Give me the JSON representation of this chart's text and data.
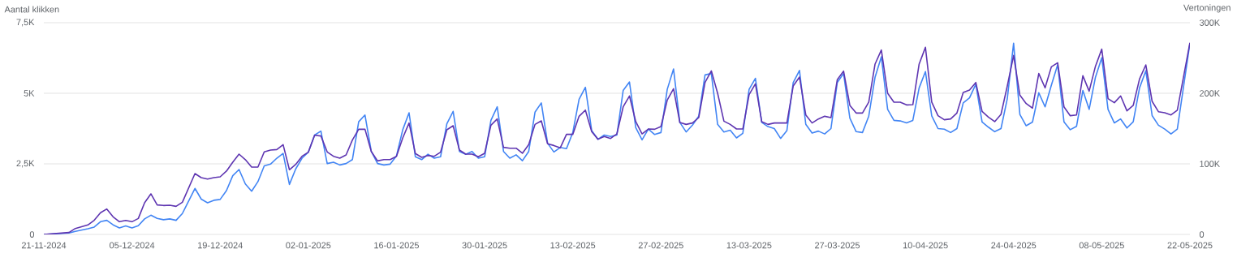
{
  "chart_data": {
    "type": "line",
    "ylabel": "Aantal klikken",
    "y2label": "Vertoningen",
    "grid": "y",
    "marker": "none",
    "xlim": [
      "2024-11-21",
      "2025-05-22"
    ],
    "xticks": [
      {
        "value": "2024-11-21",
        "label": "21-11-2024"
      },
      {
        "value": "2024-12-05",
        "label": "05-12-2024"
      },
      {
        "value": "2024-12-19",
        "label": "19-12-2024"
      },
      {
        "value": "2025-01-02",
        "label": "02-01-2025"
      },
      {
        "value": "2025-01-16",
        "label": "16-01-2025"
      },
      {
        "value": "2025-01-30",
        "label": "30-01-2025"
      },
      {
        "value": "2025-02-13",
        "label": "13-02-2025"
      },
      {
        "value": "2025-02-27",
        "label": "27-02-2025"
      },
      {
        "value": "2025-03-13",
        "label": "13-03-2025"
      },
      {
        "value": "2025-03-27",
        "label": "27-03-2025"
      },
      {
        "value": "2025-04-10",
        "label": "10-04-2025"
      },
      {
        "value": "2025-04-24",
        "label": "24-04-2025"
      },
      {
        "value": "2025-05-08",
        "label": "08-05-2025"
      },
      {
        "value": "2025-05-22",
        "label": "22-05-2025"
      }
    ],
    "ylim": [
      0,
      7500
    ],
    "yticks": [
      0,
      {
        "value": 2500,
        "label": "2,5K"
      },
      {
        "value": 5000,
        "label": "5K"
      },
      {
        "value": 7500,
        "label": "7,5K"
      }
    ],
    "y2lim": [
      0,
      300000
    ],
    "y2ticks": [
      0,
      {
        "value": 100000,
        "label": "100K"
      },
      {
        "value": 200000,
        "label": "200K"
      },
      {
        "value": 300000,
        "label": "300K"
      }
    ],
    "x": [
      "2024-11-21",
      "2024-11-25",
      "2024-11-26",
      "2024-11-28",
      "2024-11-29",
      "2024-11-30",
      "2024-12-01",
      "2024-12-02",
      "2024-12-03",
      "2024-12-04",
      "2024-12-05",
      "2024-12-06",
      "2024-12-07",
      "2024-12-08",
      "2024-12-09",
      "2024-12-10",
      "2024-12-11",
      "2024-12-12",
      "2024-12-13",
      "2024-12-15",
      "2024-12-16",
      "2024-12-17",
      "2024-12-18",
      "2024-12-19",
      "2024-12-20",
      "2024-12-21",
      "2024-12-22",
      "2024-12-23",
      "2024-12-24",
      "2024-12-25",
      "2024-12-26",
      "2024-12-27",
      "2024-12-28",
      "2024-12-29",
      "2024-12-30",
      "2024-12-31",
      "2025-01-01",
      "2025-01-02",
      "2025-01-03",
      "2025-01-04",
      "2025-01-05",
      "2025-01-06",
      "2025-01-07",
      "2025-01-08",
      "2025-01-09",
      "2025-01-10",
      "2025-01-11",
      "2025-01-12",
      "2025-01-13",
      "2025-01-14",
      "2025-01-15",
      "2025-01-16",
      "2025-01-17",
      "2025-01-18",
      "2025-01-19",
      "2025-01-20",
      "2025-01-21",
      "2025-01-22",
      "2025-01-23",
      "2025-01-24",
      "2025-01-25",
      "2025-01-26",
      "2025-01-27",
      "2025-01-28",
      "2025-01-29",
      "2025-01-30",
      "2025-01-31",
      "2025-02-01",
      "2025-02-02",
      "2025-02-03",
      "2025-02-04",
      "2025-02-05",
      "2025-02-06",
      "2025-02-07",
      "2025-02-08",
      "2025-02-09",
      "2025-02-10",
      "2025-02-11",
      "2025-02-12",
      "2025-02-13",
      "2025-02-14",
      "2025-02-15",
      "2025-02-16",
      "2025-02-17",
      "2025-02-18",
      "2025-02-19",
      "2025-02-20",
      "2025-02-21",
      "2025-02-22",
      "2025-02-23",
      "2025-02-24",
      "2025-02-25",
      "2025-02-26",
      "2025-02-27",
      "2025-02-28",
      "2025-03-01",
      "2025-03-02",
      "2025-03-03",
      "2025-03-04",
      "2025-03-05",
      "2025-03-06",
      "2025-03-07",
      "2025-03-08",
      "2025-03-09",
      "2025-03-10",
      "2025-03-11",
      "2025-03-12",
      "2025-03-13",
      "2025-03-14",
      "2025-03-15",
      "2025-03-16",
      "2025-03-17",
      "2025-03-18",
      "2025-03-19",
      "2025-03-20",
      "2025-03-21",
      "2025-03-22",
      "2025-03-23",
      "2025-03-24",
      "2025-03-25",
      "2025-03-26",
      "2025-03-27",
      "2025-03-28",
      "2025-03-29",
      "2025-03-30",
      "2025-03-31",
      "2025-04-01",
      "2025-04-02",
      "2025-04-03",
      "2025-04-04",
      "2025-04-05",
      "2025-04-06",
      "2025-04-07",
      "2025-04-08",
      "2025-04-09",
      "2025-04-10",
      "2025-04-11",
      "2025-04-12",
      "2025-04-13",
      "2025-04-14",
      "2025-04-15",
      "2025-04-16",
      "2025-04-17",
      "2025-04-18",
      "2025-04-19",
      "2025-04-20",
      "2025-04-21",
      "2025-04-22",
      "2025-04-23",
      "2025-04-24",
      "2025-04-25",
      "2025-04-26",
      "2025-04-27",
      "2025-04-28",
      "2025-04-29",
      "2025-04-30",
      "2025-05-01",
      "2025-05-02",
      "2025-05-03",
      "2025-05-04",
      "2025-05-05",
      "2025-05-06",
      "2025-05-07",
      "2025-05-08",
      "2025-05-09",
      "2025-05-10",
      "2025-05-11",
      "2025-05-12",
      "2025-05-13",
      "2025-05-14",
      "2025-05-15",
      "2025-05-16",
      "2025-05-17",
      "2025-05-18",
      "2025-05-19",
      "2025-05-20",
      "2025-05-22"
    ],
    "series": [
      {
        "color": "#5e35b1",
        "axis": "y2",
        "values": [
          0,
          2700,
          8400,
          13400,
          20000,
          30700,
          36000,
          24900,
          18000,
          19900,
          18000,
          22600,
          44800,
          57500,
          41800,
          41000,
          41400,
          39800,
          45600,
          86200,
          80500,
          78500,
          80500,
          81600,
          89700,
          102300,
          113800,
          106000,
          95400,
          95400,
          116900,
          119500,
          120300,
          127200,
          91600,
          99200,
          110700,
          116500,
          140600,
          139500,
          116900,
          110700,
          108000,
          112600,
          133700,
          149000,
          149000,
          117600,
          104200,
          106100,
          106100,
          110700,
          136800,
          157900,
          114600,
          109200,
          111900,
          110700,
          116500,
          148300,
          154000,
          119500,
          113800,
          113800,
          110000,
          115000,
          154800,
          163600,
          123400,
          122200,
          122200,
          115000,
          127200,
          155900,
          160900,
          128400,
          126000,
          122600,
          141800,
          141800,
          167400,
          176200,
          145600,
          134900,
          138700,
          136000,
          142500,
          180800,
          196200,
          159800,
          142500,
          149400,
          149000,
          152900,
          190400,
          206500,
          158600,
          155900,
          157900,
          165500,
          215300,
          231800,
          200000,
          160500,
          155900,
          149400,
          149400,
          198100,
          213400,
          159800,
          155900,
          157900,
          157900,
          157900,
          210300,
          223000,
          169300,
          157900,
          163600,
          167400,
          165500,
          219200,
          231400,
          182800,
          172000,
          172000,
          187400,
          241400,
          261300,
          200000,
          187400,
          187400,
          183500,
          183900,
          241400,
          265100,
          187400,
          168200,
          162500,
          163600,
          172000,
          201100,
          204600,
          215300,
          174300,
          166300,
          159800,
          170100,
          210300,
          253600,
          197300,
          185400,
          178900,
          228000,
          207700,
          237500,
          243300,
          180800,
          168200,
          169300,
          224900,
          203000,
          238300,
          262500,
          192300,
          186600,
          196200,
          175100,
          182800,
          220300,
          240200,
          188500,
          173900,
          172400,
          169300,
          175900,
          271600
        ]
      },
      {
        "color": "#4285f4",
        "axis": "y",
        "values": [
          0,
          50,
          110,
          200,
          260,
          450,
          500,
          340,
          230,
          300,
          230,
          310,
          550,
          680,
          570,
          520,
          550,
          500,
          740,
          1630,
          1250,
          1120,
          1210,
          1240,
          1550,
          2080,
          2300,
          1790,
          1530,
          1870,
          2430,
          2490,
          2700,
          2870,
          1770,
          2320,
          2700,
          2910,
          3520,
          3660,
          2510,
          2560,
          2460,
          2510,
          2650,
          3990,
          4230,
          2940,
          2510,
          2460,
          2490,
          2780,
          3710,
          4310,
          2750,
          2650,
          2840,
          2700,
          2750,
          3920,
          4360,
          2940,
          2840,
          2940,
          2700,
          2750,
          4040,
          4520,
          2940,
          2700,
          2820,
          2610,
          2940,
          4330,
          4660,
          3230,
          2920,
          3080,
          3040,
          3610,
          4790,
          5210,
          3680,
          3370,
          3520,
          3470,
          3520,
          5100,
          5400,
          3780,
          3350,
          3730,
          3540,
          3610,
          5140,
          5860,
          3970,
          3630,
          3870,
          4190,
          5650,
          5700,
          3900,
          3630,
          3690,
          3420,
          3580,
          5140,
          5530,
          3970,
          3820,
          3750,
          3400,
          3680,
          5380,
          5810,
          3900,
          3590,
          3660,
          3560,
          3750,
          5380,
          5700,
          4120,
          3640,
          3610,
          4190,
          5570,
          6290,
          4430,
          4040,
          4020,
          3950,
          4040,
          5190,
          5770,
          4200,
          3750,
          3730,
          3610,
          3750,
          4660,
          4840,
          5320,
          3980,
          3800,
          3640,
          3750,
          4810,
          6770,
          4250,
          3850,
          3980,
          5020,
          4520,
          5290,
          6010,
          3990,
          3710,
          3830,
          5100,
          4430,
          5570,
          6260,
          4430,
          3950,
          4090,
          3770,
          3990,
          5190,
          5800,
          4210,
          3870,
          3730,
          3560,
          3730,
          6770
        ]
      }
    ]
  }
}
